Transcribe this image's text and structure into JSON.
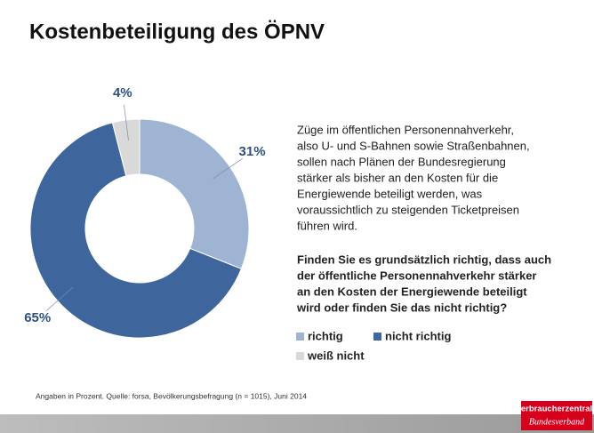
{
  "chart_data": {
    "type": "donut",
    "title": "Kostenbeteiligung des ÖPNV",
    "categories": [
      "richtig",
      "nicht richtig",
      "weiß nicht"
    ],
    "values": [
      31,
      65,
      4
    ],
    "value_labels": [
      "31%",
      "65%",
      "4%"
    ],
    "colors": [
      "#9fb4d2",
      "#3e669d",
      "#d9d9d9"
    ]
  },
  "description_lines": [
    "Züge im öffentlichen Personennahverkehr,",
    "also U- und S-Bahnen sowie Straßenbahnen,",
    "sollen nach Plänen der Bundesregierung",
    "stärker als bisher an den Kosten für die",
    "Energiewende beteiligt werden, was",
    "voraussichtlich zu steigenden Ticketpreisen",
    "führen wird."
  ],
  "question_lines": [
    "Finden Sie es grundsätzlich richtig, dass auch",
    "der öffentliche Personennahverkehr stärker",
    "an den Kosten der Energiewende beteiligt",
    "wird oder finden Sie das nicht richtig?"
  ],
  "source": "Angaben in Prozent. Quelle: forsa, Bevölkerungsbefragung (n = 1015), Juni 2014",
  "logo": {
    "name": "verbraucherzentrale",
    "subtitle": "Bundesverband"
  }
}
